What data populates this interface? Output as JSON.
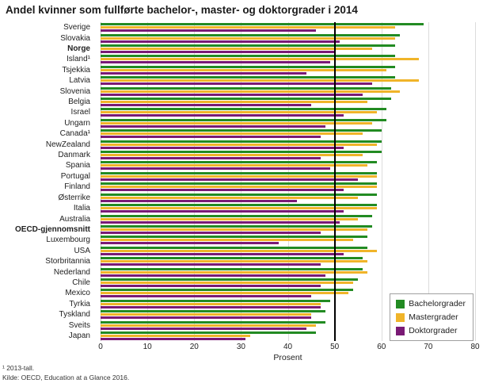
{
  "chart_data": {
    "type": "bar",
    "orientation": "horizontal",
    "title": "Andel kvinner som fullførte bachelor-, master- og doktorgrader i 2014",
    "xlabel": "Prosent",
    "xlim": [
      0,
      80
    ],
    "xticks": [
      0,
      10,
      20,
      30,
      40,
      50,
      60,
      70,
      80
    ],
    "reference_line": 50,
    "grid": "vertical",
    "legend_position": "bottom-right",
    "categories": [
      "Sverige",
      "Slovakia",
      "Norge",
      "Island¹",
      "Tsjekkia",
      "Latvia",
      "Slovenia",
      "Belgia",
      "Israel",
      "Ungarn",
      "Canada¹",
      "NewZealand",
      "Danmark",
      "Spania",
      "Portugal",
      "Finland",
      "Østerrike",
      "Italia",
      "Australia",
      "OECD-gjennomsnitt",
      "Luxembourg",
      "USA",
      "Storbritannia",
      "Nederland",
      "Chile",
      "Mexico",
      "Tyrkia",
      "Tyskland",
      "Sveits",
      "Japan"
    ],
    "bold_categories": [
      "Norge",
      "OECD-gjennomsnitt"
    ],
    "series": [
      {
        "name": "Bachelorgrader",
        "color": "#228b22",
        "values": [
          69,
          64,
          63,
          63,
          63,
          63,
          62,
          62,
          61,
          61,
          60,
          60,
          60,
          59,
          59,
          59,
          59,
          59,
          58,
          58,
          57,
          57,
          56,
          56,
          55,
          54,
          49,
          48,
          48,
          46
        ]
      },
      {
        "name": "Mastergrader",
        "color": "#f0b429",
        "values": [
          63,
          63,
          58,
          68,
          61,
          68,
          64,
          57,
          59,
          58,
          56,
          59,
          56,
          57,
          59,
          59,
          55,
          59,
          55,
          57,
          54,
          59,
          57,
          57,
          54,
          53,
          47,
          45,
          46,
          32
        ]
      },
      {
        "name": "Doktorgrader",
        "color": "#7a1a75",
        "values": [
          46,
          51,
          50,
          49,
          44,
          58,
          56,
          45,
          52,
          48,
          47,
          52,
          47,
          49,
          55,
          52,
          42,
          52,
          51,
          47,
          38,
          52,
          47,
          48,
          47,
          45,
          47,
          45,
          44,
          31
        ]
      }
    ]
  },
  "footnotes": [
    "¹ 2013-tall.",
    "Kilde: OECD, Education at a Glance 2016."
  ]
}
